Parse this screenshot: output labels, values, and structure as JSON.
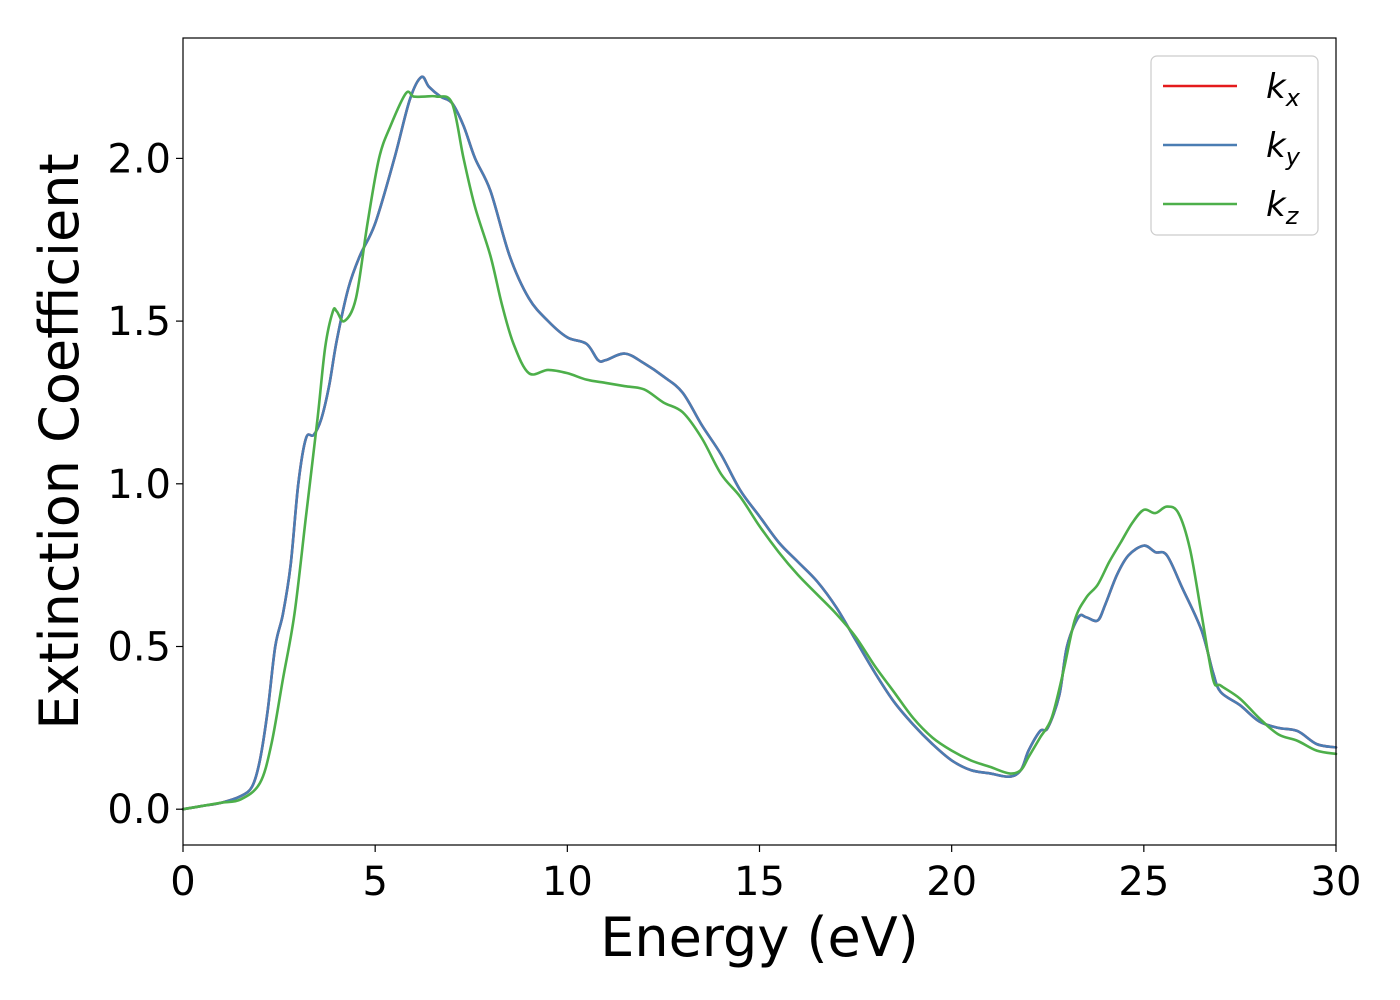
{
  "chart_data": {
    "type": "line",
    "xlabel": "Energy (eV)",
    "ylabel": "Extinction Coefficient",
    "xlim": [
      0,
      30
    ],
    "ylim": [
      -0.11,
      2.37
    ],
    "xticks": [
      0,
      5,
      10,
      15,
      20,
      25,
      30
    ],
    "xtick_labels": [
      "0",
      "5",
      "10",
      "15",
      "20",
      "25",
      "30"
    ],
    "yticks": [
      0.0,
      0.5,
      1.0,
      1.5,
      2.0
    ],
    "ytick_labels": [
      "0.0",
      "0.5",
      "1.0",
      "1.5",
      "2.0"
    ],
    "grid": false,
    "legend_position": "top-right",
    "series": [
      {
        "name": "k_x",
        "label_main": "k",
        "label_sub": "x",
        "color": "#e41a1c",
        "x": [
          0,
          0.5,
          1.0,
          1.5,
          1.8,
          2.0,
          2.2,
          2.4,
          2.6,
          2.8,
          3.0,
          3.2,
          3.4,
          3.6,
          3.8,
          4.0,
          4.3,
          4.6,
          5.0,
          5.5,
          5.9,
          6.2,
          6.4,
          6.7,
          7.0,
          7.3,
          7.6,
          8.0,
          8.5,
          9.0,
          9.5,
          10.0,
          10.5,
          10.8,
          11.0,
          11.5,
          12.0,
          12.5,
          13.0,
          13.5,
          14.0,
          14.5,
          15.0,
          15.5,
          16.0,
          16.5,
          17.0,
          17.5,
          18.0,
          18.5,
          19.0,
          19.5,
          20.0,
          20.5,
          21.0,
          21.5,
          21.8,
          22.0,
          22.3,
          22.5,
          22.8,
          23.0,
          23.3,
          23.5,
          23.8,
          24.0,
          24.3,
          24.6,
          25.0,
          25.3,
          25.6,
          26.0,
          26.5,
          26.8,
          27.0,
          27.5,
          28.0,
          28.5,
          29.0,
          29.5,
          30.0
        ],
        "y": [
          0.0,
          0.01,
          0.02,
          0.04,
          0.07,
          0.15,
          0.3,
          0.5,
          0.6,
          0.75,
          1.0,
          1.14,
          1.15,
          1.2,
          1.3,
          1.44,
          1.6,
          1.7,
          1.8,
          2.0,
          2.18,
          2.25,
          2.22,
          2.19,
          2.17,
          2.1,
          2.0,
          1.9,
          1.7,
          1.57,
          1.5,
          1.45,
          1.43,
          1.38,
          1.38,
          1.4,
          1.37,
          1.33,
          1.28,
          1.18,
          1.09,
          0.98,
          0.9,
          0.82,
          0.76,
          0.7,
          0.62,
          0.52,
          0.42,
          0.33,
          0.26,
          0.2,
          0.15,
          0.12,
          0.11,
          0.1,
          0.12,
          0.18,
          0.24,
          0.25,
          0.35,
          0.5,
          0.59,
          0.59,
          0.58,
          0.63,
          0.72,
          0.78,
          0.81,
          0.79,
          0.78,
          0.68,
          0.55,
          0.42,
          0.36,
          0.32,
          0.27,
          0.25,
          0.24,
          0.2,
          0.19
        ]
      },
      {
        "name": "k_y",
        "label_main": "k",
        "label_sub": "y",
        "color": "#4a7db3",
        "x": [
          0,
          0.5,
          1.0,
          1.5,
          1.8,
          2.0,
          2.2,
          2.4,
          2.6,
          2.8,
          3.0,
          3.2,
          3.4,
          3.6,
          3.8,
          4.0,
          4.3,
          4.6,
          5.0,
          5.5,
          5.9,
          6.2,
          6.4,
          6.7,
          7.0,
          7.3,
          7.6,
          8.0,
          8.5,
          9.0,
          9.5,
          10.0,
          10.5,
          10.8,
          11.0,
          11.5,
          12.0,
          12.5,
          13.0,
          13.5,
          14.0,
          14.5,
          15.0,
          15.5,
          16.0,
          16.5,
          17.0,
          17.5,
          18.0,
          18.5,
          19.0,
          19.5,
          20.0,
          20.5,
          21.0,
          21.5,
          21.8,
          22.0,
          22.3,
          22.5,
          22.8,
          23.0,
          23.3,
          23.5,
          23.8,
          24.0,
          24.3,
          24.6,
          25.0,
          25.3,
          25.6,
          26.0,
          26.5,
          26.8,
          27.0,
          27.5,
          28.0,
          28.5,
          29.0,
          29.5,
          30.0
        ],
        "y": [
          0.0,
          0.01,
          0.02,
          0.04,
          0.07,
          0.15,
          0.3,
          0.5,
          0.6,
          0.75,
          1.0,
          1.14,
          1.15,
          1.2,
          1.3,
          1.44,
          1.6,
          1.7,
          1.8,
          2.0,
          2.18,
          2.25,
          2.22,
          2.19,
          2.17,
          2.1,
          2.0,
          1.9,
          1.7,
          1.57,
          1.5,
          1.45,
          1.43,
          1.38,
          1.38,
          1.4,
          1.37,
          1.33,
          1.28,
          1.18,
          1.09,
          0.98,
          0.9,
          0.82,
          0.76,
          0.7,
          0.62,
          0.52,
          0.42,
          0.33,
          0.26,
          0.2,
          0.15,
          0.12,
          0.11,
          0.1,
          0.12,
          0.18,
          0.24,
          0.25,
          0.35,
          0.5,
          0.59,
          0.59,
          0.58,
          0.63,
          0.72,
          0.78,
          0.81,
          0.79,
          0.78,
          0.68,
          0.55,
          0.42,
          0.36,
          0.32,
          0.27,
          0.25,
          0.24,
          0.2,
          0.19
        ]
      },
      {
        "name": "k_z",
        "label_main": "k",
        "label_sub": "z",
        "color": "#4daf4a",
        "x": [
          0,
          0.5,
          1.0,
          1.5,
          2.0,
          2.3,
          2.6,
          2.9,
          3.2,
          3.5,
          3.7,
          3.9,
          4.0,
          4.2,
          4.5,
          4.8,
          5.1,
          5.4,
          5.8,
          6.0,
          6.3,
          6.6,
          7.0,
          7.3,
          7.6,
          8.0,
          8.3,
          8.6,
          9.0,
          9.5,
          10.0,
          10.5,
          11.0,
          11.5,
          12.0,
          12.5,
          13.0,
          13.5,
          14.0,
          14.5,
          15.0,
          15.5,
          16.0,
          16.5,
          17.0,
          17.5,
          18.0,
          18.5,
          19.0,
          19.5,
          20.0,
          20.5,
          21.0,
          21.5,
          21.8,
          22.0,
          22.3,
          22.6,
          22.9,
          23.2,
          23.5,
          23.8,
          24.1,
          24.4,
          24.7,
          25.0,
          25.3,
          25.6,
          25.9,
          26.2,
          26.5,
          26.8,
          27.0,
          27.5,
          28.0,
          28.5,
          29.0,
          29.5,
          30.0
        ],
        "y": [
          0.0,
          0.01,
          0.02,
          0.03,
          0.08,
          0.2,
          0.4,
          0.6,
          0.9,
          1.2,
          1.42,
          1.53,
          1.53,
          1.5,
          1.57,
          1.8,
          2.0,
          2.1,
          2.2,
          2.19,
          2.19,
          2.19,
          2.17,
          2.0,
          1.85,
          1.7,
          1.55,
          1.43,
          1.34,
          1.35,
          1.34,
          1.32,
          1.31,
          1.3,
          1.29,
          1.25,
          1.22,
          1.14,
          1.03,
          0.96,
          0.87,
          0.79,
          0.72,
          0.66,
          0.6,
          0.53,
          0.44,
          0.36,
          0.28,
          0.22,
          0.18,
          0.15,
          0.13,
          0.11,
          0.12,
          0.16,
          0.22,
          0.28,
          0.42,
          0.58,
          0.65,
          0.69,
          0.76,
          0.82,
          0.88,
          0.92,
          0.91,
          0.93,
          0.91,
          0.8,
          0.6,
          0.4,
          0.38,
          0.34,
          0.28,
          0.23,
          0.21,
          0.18,
          0.17
        ]
      }
    ]
  }
}
